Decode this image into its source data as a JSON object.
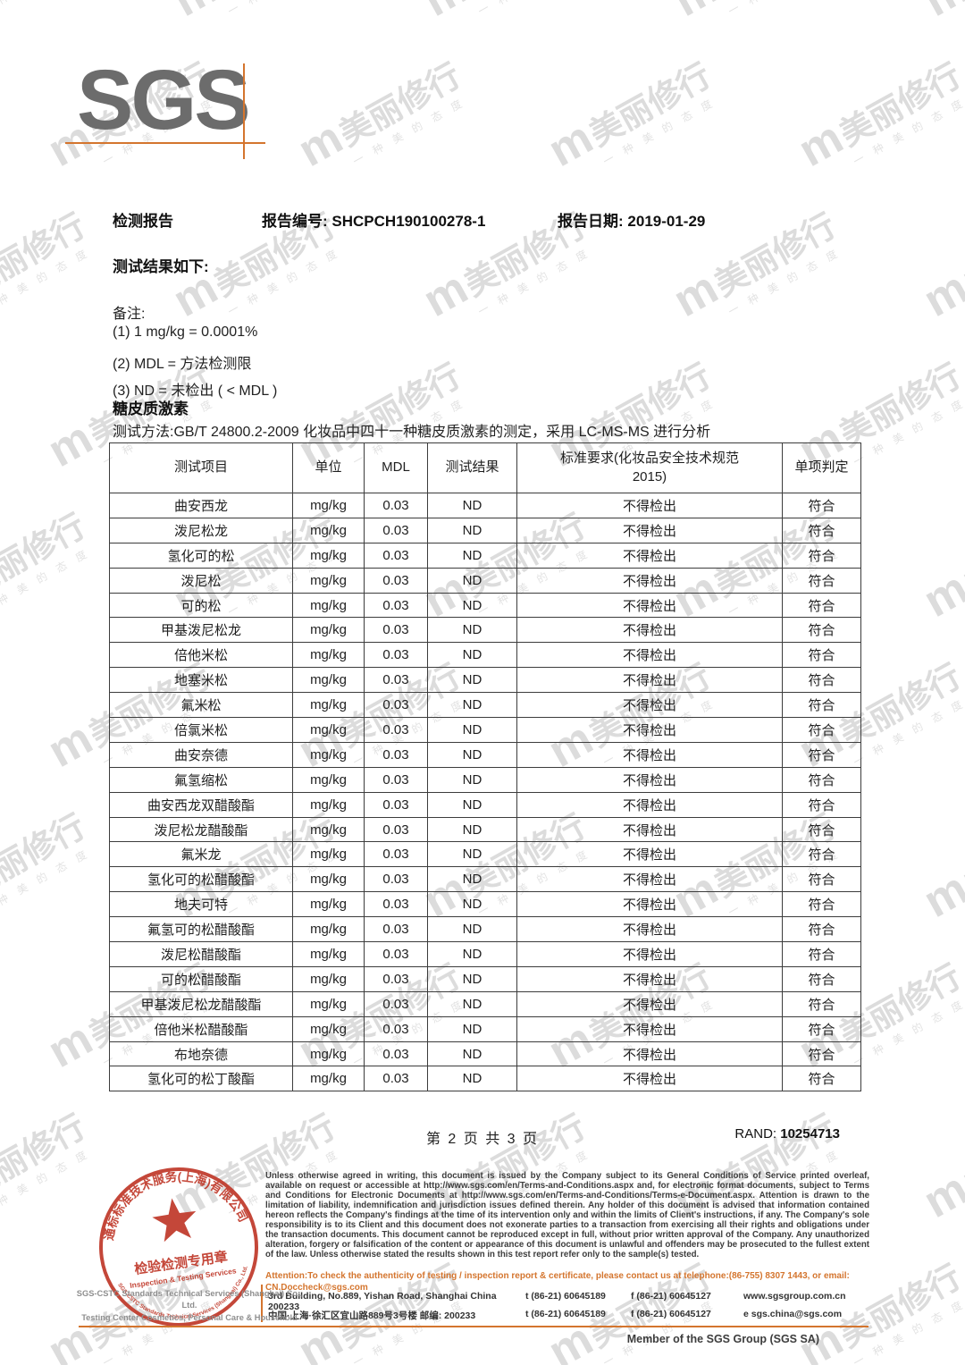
{
  "watermark": {
    "logo": "m",
    "brand": "美丽修行",
    "tagline": "一种美的态度"
  },
  "header": {
    "logo_text": "SGS",
    "doc_type": "检测报告",
    "report_no_label": "报告编号:",
    "report_no": "SHCPCH190100278-1",
    "report_date_label": "报告日期:",
    "report_date": "2019-01-29"
  },
  "intro": {
    "results_heading": "测试结果如下:",
    "notes_label": "备注:",
    "notes": [
      "(1) 1 mg/kg = 0.0001%",
      "(2) MDL = 方法检测限",
      "(3) ND = 未检出 ( < MDL )"
    ]
  },
  "section": {
    "title": "糖皮质激素",
    "method": "测试方法:GB/T 24800.2-2009 化妆品中四十一种糖皮质激素的测定，采用 LC-MS-MS 进行分析"
  },
  "table": {
    "headers": [
      "测试项目",
      "单位",
      "MDL",
      "测试结果",
      "标准要求(化妆品安全技术规范\n2015)",
      "单项判定"
    ],
    "rows": [
      {
        "item": "曲安西龙",
        "unit": "mg/kg",
        "mdl": "0.03",
        "result": "ND",
        "standard": "不得检出",
        "verdict": "符合"
      },
      {
        "item": "泼尼松龙",
        "unit": "mg/kg",
        "mdl": "0.03",
        "result": "ND",
        "standard": "不得检出",
        "verdict": "符合"
      },
      {
        "item": "氢化可的松",
        "unit": "mg/kg",
        "mdl": "0.03",
        "result": "ND",
        "standard": "不得检出",
        "verdict": "符合"
      },
      {
        "item": "泼尼松",
        "unit": "mg/kg",
        "mdl": "0.03",
        "result": "ND",
        "standard": "不得检出",
        "verdict": "符合"
      },
      {
        "item": "可的松",
        "unit": "mg/kg",
        "mdl": "0.03",
        "result": "ND",
        "standard": "不得检出",
        "verdict": "符合"
      },
      {
        "item": "甲基泼尼松龙",
        "unit": "mg/kg",
        "mdl": "0.03",
        "result": "ND",
        "standard": "不得检出",
        "verdict": "符合"
      },
      {
        "item": "倍他米松",
        "unit": "mg/kg",
        "mdl": "0.03",
        "result": "ND",
        "standard": "不得检出",
        "verdict": "符合"
      },
      {
        "item": "地塞米松",
        "unit": "mg/kg",
        "mdl": "0.03",
        "result": "ND",
        "standard": "不得检出",
        "verdict": "符合"
      },
      {
        "item": "氟米松",
        "unit": "mg/kg",
        "mdl": "0.03",
        "result": "ND",
        "standard": "不得检出",
        "verdict": "符合"
      },
      {
        "item": "倍氯米松",
        "unit": "mg/kg",
        "mdl": "0.03",
        "result": "ND",
        "standard": "不得检出",
        "verdict": "符合"
      },
      {
        "item": "曲安奈德",
        "unit": "mg/kg",
        "mdl": "0.03",
        "result": "ND",
        "standard": "不得检出",
        "verdict": "符合"
      },
      {
        "item": "氟氢缩松",
        "unit": "mg/kg",
        "mdl": "0.03",
        "result": "ND",
        "standard": "不得检出",
        "verdict": "符合"
      },
      {
        "item": "曲安西龙双醋酸酯",
        "unit": "mg/kg",
        "mdl": "0.03",
        "result": "ND",
        "standard": "不得检出",
        "verdict": "符合"
      },
      {
        "item": "泼尼松龙醋酸酯",
        "unit": "mg/kg",
        "mdl": "0.03",
        "result": "ND",
        "standard": "不得检出",
        "verdict": "符合"
      },
      {
        "item": "氟米龙",
        "unit": "mg/kg",
        "mdl": "0.03",
        "result": "ND",
        "standard": "不得检出",
        "verdict": "符合"
      },
      {
        "item": "氢化可的松醋酸酯",
        "unit": "mg/kg",
        "mdl": "0.03",
        "result": "ND",
        "standard": "不得检出",
        "verdict": "符合"
      },
      {
        "item": "地夫可特",
        "unit": "mg/kg",
        "mdl": "0.03",
        "result": "ND",
        "standard": "不得检出",
        "verdict": "符合"
      },
      {
        "item": "氟氢可的松醋酸酯",
        "unit": "mg/kg",
        "mdl": "0.03",
        "result": "ND",
        "standard": "不得检出",
        "verdict": "符合"
      },
      {
        "item": "泼尼松醋酸酯",
        "unit": "mg/kg",
        "mdl": "0.03",
        "result": "ND",
        "standard": "不得检出",
        "verdict": "符合"
      },
      {
        "item": "可的松醋酸酯",
        "unit": "mg/kg",
        "mdl": "0.03",
        "result": "ND",
        "standard": "不得检出",
        "verdict": "符合"
      },
      {
        "item": "甲基泼尼松龙醋酸酯",
        "unit": "mg/kg",
        "mdl": "0.03",
        "result": "ND",
        "standard": "不得检出",
        "verdict": "符合"
      },
      {
        "item": "倍他米松醋酸酯",
        "unit": "mg/kg",
        "mdl": "0.03",
        "result": "ND",
        "standard": "不得检出",
        "verdict": "符合"
      },
      {
        "item": "布地奈德",
        "unit": "mg/kg",
        "mdl": "0.03",
        "result": "ND",
        "standard": "不得检出",
        "verdict": "符合"
      },
      {
        "item": "氢化可的松丁酸酯",
        "unit": "mg/kg",
        "mdl": "0.03",
        "result": "ND",
        "standard": "不得检出",
        "verdict": "符合"
      }
    ]
  },
  "page_footer": {
    "page_info": "第 2 页 共 3 页",
    "rand_label": "RAND:",
    "rand_value": "10254713"
  },
  "stamp": {
    "arc_top": "通标标准技术服务(上海)有限公司",
    "arc_bottom": "SGS-CSTC Standards Technical Services (Shanghai) Co., Ltd.",
    "center_line1": "检验检测专用章",
    "center_line2": "Inspection & Testing Services"
  },
  "footer": {
    "company_line1": "SGS-CSTC Standards Technical Services (Shanghai) Co., Ltd.",
    "company_line2": "Testing Center Cosmetics, Personal Care & Household",
    "legal": "Unless otherwise agreed in writing, this document is issued by the Company subject to its General Conditions of Service printed overleaf, available on request or accessible at http://www.sgs.com/en/Terms-and-Conditions.aspx and, for electronic format documents, subject to Terms and Conditions for Electronic Documents at http://www.sgs.com/en/Terms-and-Conditions/Terms-e-Document.aspx. Attention is drawn to the limitation of liability, indemnification and jurisdiction issues defined therein. Any holder of this document is advised that information contained hereon reflects the Company's findings at the time of its intervention only and within the limits of Client's instructions, if any. The Company's sole responsibility is to its Client and this document does not exonerate parties to a transaction from exercising all their rights and obligations under the transaction documents. This document cannot be reproduced except in full, without prior written approval of the Company. Any unauthorized alteration, forgery or falsification of the content or appearance of this document is unlawful and offenders may be prosecuted to the fullest extent of the law. Unless otherwise stated the results shown in this test report refer only to the sample(s) tested.",
    "attention": "Attention:To check the authenticity of testing / inspection report & certificate, please contact us at telephone:(86-755) 8307 1443, or email: CN.Doccheck@sgs.com",
    "address_en": {
      "addr": "3rd Building, No.889, Yishan Road, Shanghai China 200233",
      "tel": "t (86-21) 60645189",
      "fax": "f (86-21) 60645127",
      "web": "www.sgsgroup.com.cn"
    },
    "address_cn": {
      "addr": "中国·上海·徐汇区宜山路889号3号楼 邮编: 200233",
      "tel": "t (86-21) 60645189",
      "fax": "f (86-21) 60645127",
      "web": "e sgs.china@sgs.com"
    },
    "member": "Member of the SGS Group (SGS SA)"
  },
  "colors": {
    "accent_orange": "#d4752e",
    "stamp_red": "#c03a2b",
    "logo_gray": "#6c6c6c",
    "watermark_gray": "#dcdcdc"
  }
}
